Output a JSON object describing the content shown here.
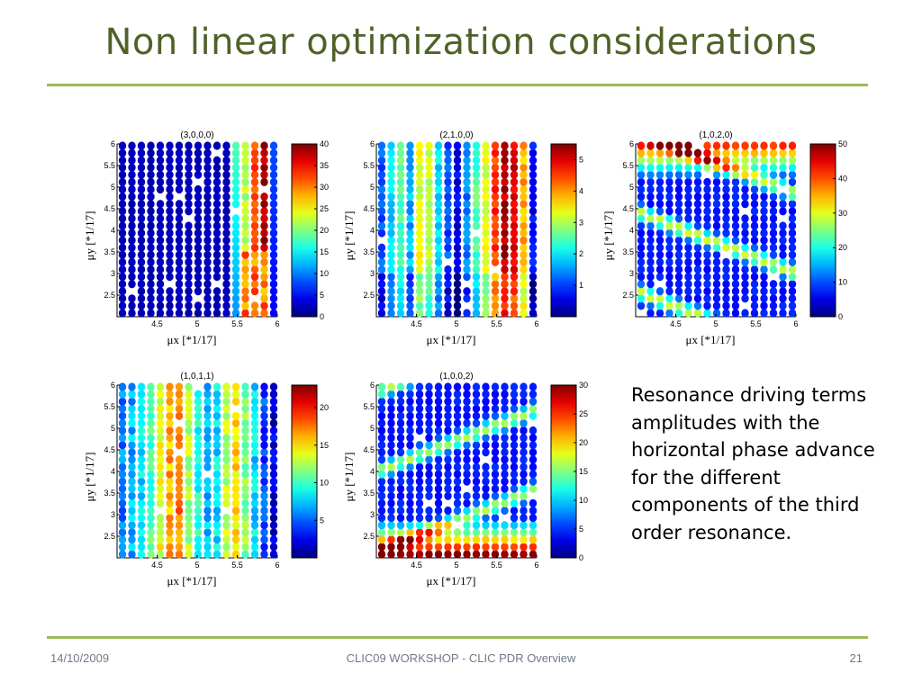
{
  "slide": {
    "title": "Non linear optimization considerations",
    "description": "Resonance driving terms amplitudes with the horizontal phase advance for the different components of the third order resonance.",
    "footer_date": "14/10/2009",
    "footer_center": "CLIC09 WORKSHOP - CLIC PDR Overview",
    "page_number": "21"
  },
  "colors": {
    "title": "#4f6228",
    "rule": "#9bbb59",
    "footer": "#707a8a",
    "colormap": "jet"
  },
  "chart_data": [
    {
      "type": "scatter",
      "title": "(3,0,0,0)",
      "xlabel": "μx [*1/17]",
      "ylabel": "μy [*1/17]",
      "xlim": [
        4.0,
        6.0
      ],
      "ylim": [
        2.0,
        6.0
      ],
      "xticks": [
        "4.5",
        "5",
        "5.5",
        "6"
      ],
      "yticks": [
        "2.5",
        "3",
        "3.5",
        "4",
        "4.5",
        "5",
        "5.5",
        "6"
      ],
      "colorbar": {
        "min": 0,
        "max": 40,
        "ticks": [
          "0",
          "5",
          "10",
          "15",
          "20",
          "25",
          "30",
          "35",
          "40"
        ]
      },
      "pattern": "columns-right",
      "cols": 17,
      "rows": 24
    },
    {
      "type": "scatter",
      "title": "(2,1,0,0)",
      "xlabel": "μx [*1/17]",
      "ylabel": "μy [*1/17]",
      "xlim": [
        4.0,
        6.0
      ],
      "ylim": [
        2.0,
        6.0
      ],
      "xticks": [
        "4.5",
        "5",
        "5.5",
        "6"
      ],
      "yticks": [
        "2.5",
        "3",
        "3.5",
        "4",
        "4.5",
        "5",
        "5.5",
        "6"
      ],
      "colorbar": {
        "min": 0,
        "max": 5.5,
        "ticks": [
          "1",
          "2",
          "3",
          "4",
          "5"
        ]
      },
      "pattern": "columns-mixed",
      "cols": 17,
      "rows": 24
    },
    {
      "type": "scatter",
      "title": "(1,0,2,0)",
      "xlabel": "μx [*1/17]",
      "ylabel": "μy [*1/17]",
      "xlim": [
        4.0,
        6.0
      ],
      "ylim": [
        2.0,
        6.0
      ],
      "xticks": [
        "4.5",
        "5",
        "5.5",
        "6"
      ],
      "yticks": [
        "2.5",
        "3",
        "3.5",
        "4",
        "4.5",
        "5",
        "5.5",
        "6"
      ],
      "colorbar": {
        "min": 0,
        "max": 50,
        "ticks": [
          "0",
          "10",
          "20",
          "30",
          "40",
          "50"
        ]
      },
      "pattern": "diagonal-down",
      "cols": 17,
      "rows": 24
    },
    {
      "type": "scatter",
      "title": "(1,0,1,1)",
      "xlabel": "μx [*1/17]",
      "ylabel": "μy [*1/17]",
      "xlim": [
        4.0,
        6.0
      ],
      "ylim": [
        2.0,
        6.0
      ],
      "xticks": [
        "4.5",
        "5",
        "5.5",
        "6"
      ],
      "yticks": [
        "2.5",
        "3",
        "3.5",
        "4",
        "4.5",
        "5",
        "5.5",
        "6"
      ],
      "colorbar": {
        "min": 0,
        "max": 23,
        "ticks": [
          "5",
          "10",
          "15",
          "20"
        ]
      },
      "pattern": "columns-soft",
      "cols": 17,
      "rows": 24
    },
    {
      "type": "scatter",
      "title": "(1,0,0,2)",
      "xlabel": "μx [*1/17]",
      "ylabel": "μy [*1/17]",
      "xlim": [
        4.0,
        6.0
      ],
      "ylim": [
        2.0,
        6.0
      ],
      "xticks": [
        "4.5",
        "5",
        "5.5",
        "6"
      ],
      "yticks": [
        "2.5",
        "3",
        "3.5",
        "4",
        "4.5",
        "5",
        "5.5",
        "6"
      ],
      "colorbar": {
        "min": 0,
        "max": 30,
        "ticks": [
          "0",
          "5",
          "10",
          "15",
          "20",
          "25",
          "30"
        ]
      },
      "pattern": "diagonal-up",
      "cols": 17,
      "rows": 24
    }
  ]
}
